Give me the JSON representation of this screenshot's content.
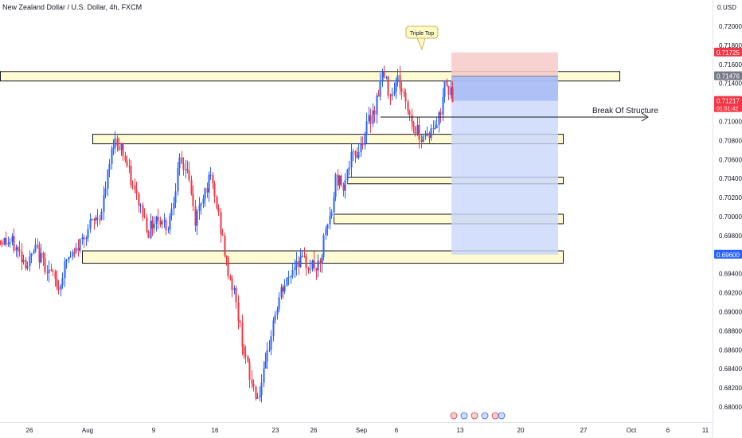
{
  "header": {
    "title": "New Zealand Dollar / U.S. Dollar, 4h, FXCM",
    "currency_label": "USD"
  },
  "chart_data": {
    "type": "candlestick",
    "title": "New Zealand Dollar / U.S. Dollar, 4h, FXCM",
    "ylim": [
      0.679,
      0.723
    ],
    "y_ticks": [
      "0.72000",
      "0.71800",
      "0.71600",
      "0.71400",
      "0.71000",
      "0.70800",
      "0.70600",
      "0.70400",
      "0.70200",
      "0.70000",
      "0.69800",
      "0.69400",
      "0.69200",
      "0.69000",
      "0.68800",
      "0.68600",
      "0.68400",
      "0.68200",
      "0.68000"
    ],
    "x_ticks": [
      "26",
      "Aug",
      "9",
      "16",
      "23",
      "26",
      "Sep",
      "6",
      "13",
      "20",
      "27",
      "Oct",
      "6",
      "11"
    ],
    "price_labels": [
      {
        "text": "0.71725",
        "value": 0.71725,
        "color": "#f23645"
      },
      {
        "text": "0.71476",
        "value": 0.71476,
        "color": "#787b86"
      },
      {
        "text": "0.71217",
        "value": 0.71217,
        "color": "#f23645",
        "sub": "01:51:42"
      },
      {
        "text": "0.69600",
        "value": 0.696,
        "color": "#2962ff"
      }
    ],
    "annotations": [
      {
        "kind": "callout",
        "text": "Triple Top"
      },
      {
        "kind": "arrow-label",
        "text": "Break Of Structure"
      }
    ],
    "zones": [
      {
        "low": 0.71425,
        "high": 0.71525
      },
      {
        "low": 0.70765,
        "high": 0.70865
      },
      {
        "low": 0.70345,
        "high": 0.70415
      },
      {
        "low": 0.69925,
        "high": 0.70025
      },
      {
        "low": 0.6951,
        "high": 0.6964
      }
    ],
    "position": {
      "entry": 0.71476,
      "stop": 0.71725,
      "target": 0.696
    },
    "colors": {
      "up": "#2962ff",
      "down": "#f23645",
      "zone_fill": "#fff9c4",
      "zone_stroke": "#131722",
      "stop_fill": "#f7c9c9",
      "target_fill": "#c9d7fb"
    },
    "anchors": [
      [
        0,
        0.6975
      ],
      [
        6,
        0.6972
      ],
      [
        14,
        0.695
      ],
      [
        18,
        0.6965
      ],
      [
        26,
        0.694
      ],
      [
        30,
        0.6925
      ],
      [
        34,
        0.6955
      ],
      [
        38,
        0.696
      ],
      [
        44,
        0.6985
      ],
      [
        52,
        0.7005
      ],
      [
        58,
        0.708
      ],
      [
        62,
        0.7075
      ],
      [
        68,
        0.703
      ],
      [
        72,
        0.701
      ],
      [
        76,
        0.6985
      ],
      [
        80,
        0.7
      ],
      [
        86,
        0.699
      ],
      [
        92,
        0.7055
      ],
      [
        96,
        0.705
      ],
      [
        100,
        0.6995
      ],
      [
        104,
        0.7025
      ],
      [
        108,
        0.704
      ],
      [
        112,
        0.7
      ],
      [
        116,
        0.695
      ],
      [
        120,
        0.692
      ],
      [
        124,
        0.687
      ],
      [
        128,
        0.683
      ],
      [
        132,
        0.681
      ],
      [
        136,
        0.684
      ],
      [
        140,
        0.689
      ],
      [
        144,
        0.692
      ],
      [
        148,
        0.6935
      ],
      [
        152,
        0.6955
      ],
      [
        158,
        0.695
      ],
      [
        164,
        0.6945
      ],
      [
        166,
        0.6975
      ],
      [
        170,
        0.7005
      ],
      [
        172,
        0.704
      ],
      [
        176,
        0.7035
      ],
      [
        180,
        0.706
      ],
      [
        184,
        0.707
      ],
      [
        188,
        0.7095
      ],
      [
        192,
        0.7115
      ],
      [
        196,
        0.715
      ],
      [
        200,
        0.713
      ],
      [
        204,
        0.7145
      ],
      [
        208,
        0.712
      ],
      [
        212,
        0.7095
      ],
      [
        216,
        0.7085
      ],
      [
        222,
        0.709
      ],
      [
        226,
        0.711
      ],
      [
        228,
        0.7148
      ],
      [
        232,
        0.7122
      ]
    ]
  }
}
